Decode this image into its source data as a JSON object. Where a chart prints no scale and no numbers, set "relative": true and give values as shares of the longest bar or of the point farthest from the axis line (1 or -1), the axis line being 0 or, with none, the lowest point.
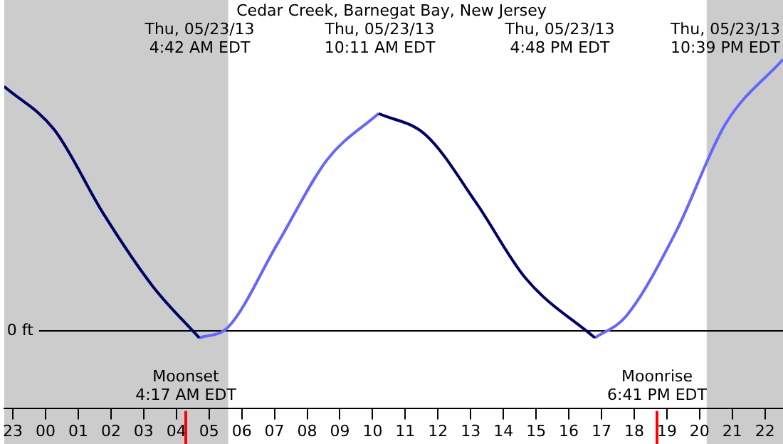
{
  "chart_data": {
    "type": "line",
    "title": "Cedar Creek, Barnegat Bay, New Jersey",
    "relative": true,
    "x": [
      "--05-22T22:44",
      "--05-23T00:16",
      "--05-23T01:46",
      "--05-23T03:17",
      "--05-23T04:42",
      "--05-23T05:35",
      "--05-23T07:06",
      "--05-23T08:37",
      "--05-23T10:11",
      "--05-23T11:38",
      "--05-23T13:10",
      "--05-23T14:41",
      "--05-23T16:48",
      "--05-23T17:45",
      "--05-23T19:16",
      "--05-23T20:47",
      "--05-23T22:33"
    ],
    "series": [
      {
        "color": "#000066",
        "values": [
          0.9,
          0.74,
          0.43,
          0.16,
          -0.03,
          null,
          null,
          null,
          0.8,
          0.72,
          0.47,
          0.19,
          -0.03,
          null,
          null,
          null,
          null
        ]
      },
      {
        "color": "#6666ff",
        "values": [
          null,
          null,
          null,
          null,
          -0.03,
          0.01,
          0.32,
          0.63,
          0.8,
          null,
          null,
          null,
          -0.03,
          0.05,
          0.36,
          0.76,
          1.0
        ]
      }
    ],
    "xlim": [
      "--05-22T22:44",
      "--05-23T22:33"
    ],
    "xticks": [
      {
        "value": "--05-22T23:00",
        "label": "23"
      },
      {
        "value": "--05-23T00:00",
        "label": "00"
      },
      {
        "value": "--05-23T01:00",
        "label": "01"
      },
      {
        "value": "--05-23T02:00",
        "label": "02"
      },
      {
        "value": "--05-23T03:00",
        "label": "03"
      },
      {
        "value": "--05-23T04:00",
        "label": "04"
      },
      {
        "value": "--05-23T05:00",
        "label": "05"
      },
      {
        "value": "--05-23T06:00",
        "label": "06"
      },
      {
        "value": "--05-23T07:00",
        "label": "07"
      },
      {
        "value": "--05-23T08:00",
        "label": "08"
      },
      {
        "value": "--05-23T09:00",
        "label": "09"
      },
      {
        "value": "--05-23T10:00",
        "label": "10"
      },
      {
        "value": "--05-23T11:00",
        "label": "11"
      },
      {
        "value": "--05-23T12:00",
        "label": "12"
      },
      {
        "value": "--05-23T13:00",
        "label": "13"
      },
      {
        "value": "--05-23T14:00",
        "label": "14"
      },
      {
        "value": "--05-23T15:00",
        "label": "15"
      },
      {
        "value": "--05-23T16:00",
        "label": "16"
      },
      {
        "value": "--05-23T17:00",
        "label": "17"
      },
      {
        "value": "--05-23T18:00",
        "label": "18"
      },
      {
        "value": "--05-23T19:00",
        "label": "19"
      },
      {
        "value": "--05-23T20:00",
        "label": "20"
      },
      {
        "value": "--05-23T21:00",
        "label": "21"
      },
      {
        "value": "--05-23T22:00",
        "label": "22"
      }
    ],
    "ref_lines": [
      {
        "axis": "y",
        "value": 0,
        "label": "0 ft",
        "color": "#000000"
      },
      {
        "axis": "x",
        "value": "--05-23T04:17",
        "label": "Moonset\n4:17 AM EDT",
        "color": "#ff0000"
      },
      {
        "axis": "x",
        "value": "--05-23T18:41",
        "label": "Moonrise\n6:41 PM EDT",
        "color": "#ff0000"
      }
    ],
    "bands": [
      {
        "axis": "x",
        "from": "--05-22T22:44",
        "to": "--05-23T05:35",
        "color": "#cccccc"
      },
      {
        "axis": "x",
        "from": "--05-23T20:13",
        "to": "--05-23T22:33",
        "color": "#cccccc"
      }
    ],
    "annotations": [
      "Thu, 05/23/13\n4:42 AM EDT",
      "Thu, 05/23/13\n10:11 AM EDT",
      "Thu, 05/23/13\n4:48 PM EDT",
      "Thu, 05/23/13\n10:39 PM EDT"
    ],
    "grid": false,
    "legend": false,
    "marker": "none",
    "line_style": "solid"
  }
}
